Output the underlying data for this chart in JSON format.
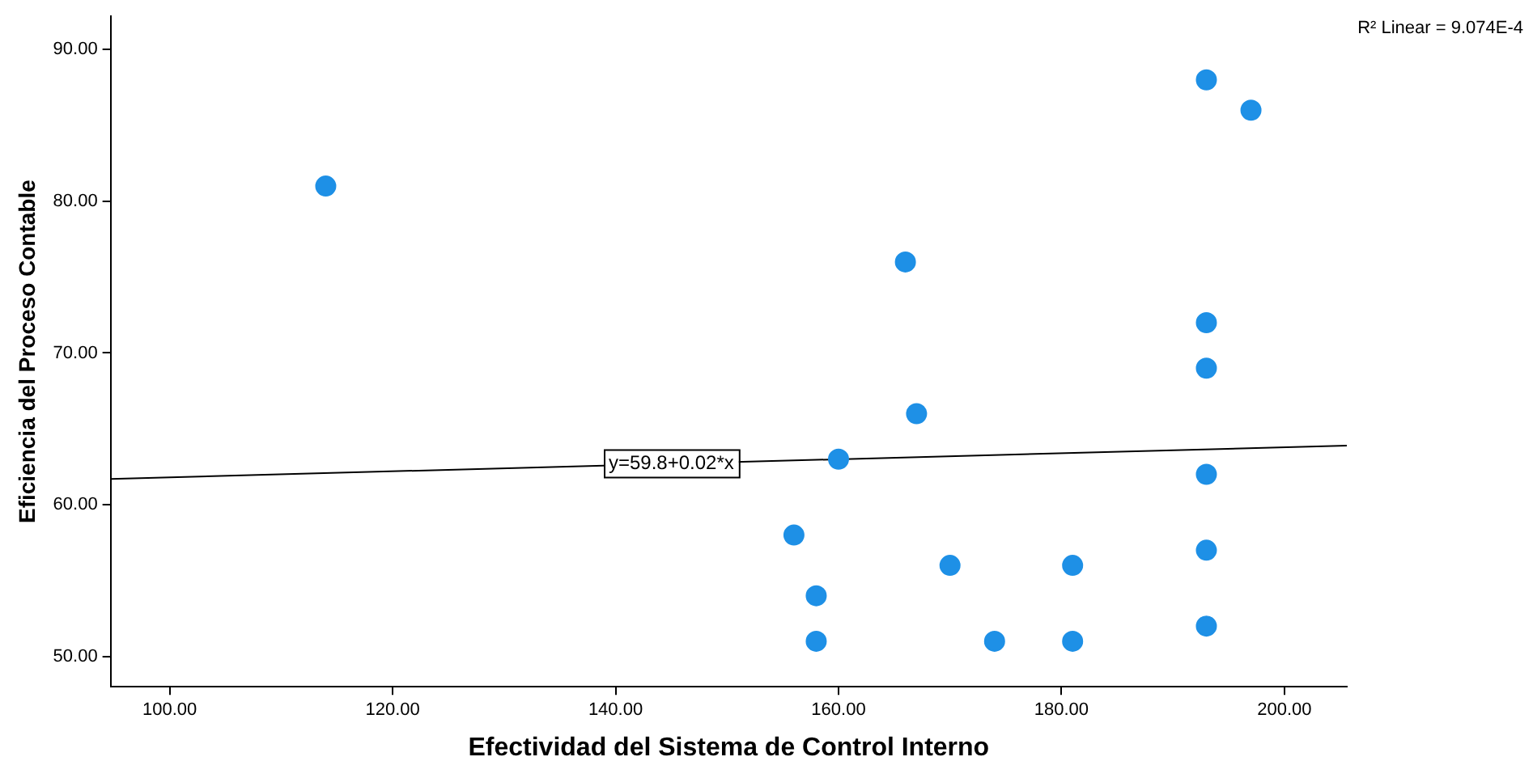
{
  "chart_data": {
    "type": "scatter",
    "xlabel": "Efectividad del Sistema de Control Interno",
    "ylabel": "Eficiencia del Proceso Contable",
    "marker": "circle",
    "xlim": [
      94.7,
      205.6
    ],
    "ylim": [
      48,
      92.2
    ],
    "xticks": [
      {
        "value": 100,
        "label": "100.00"
      },
      {
        "value": 120,
        "label": "120.00"
      },
      {
        "value": 140,
        "label": "140.00"
      },
      {
        "value": 160,
        "label": "160.00"
      },
      {
        "value": 180,
        "label": "180.00"
      },
      {
        "value": 200,
        "label": "200.00"
      }
    ],
    "yticks": [
      {
        "value": 50,
        "label": "50.00"
      },
      {
        "value": 60,
        "label": "60.00"
      },
      {
        "value": 70,
        "label": "70.00"
      },
      {
        "value": 80,
        "label": "80.00"
      },
      {
        "value": 90,
        "label": "90.00"
      }
    ],
    "series": [
      {
        "color": "#1e90e6",
        "x": [
          114,
          193,
          197,
          166,
          193,
          193,
          167,
          160,
          193,
          156,
          193,
          170,
          181,
          158,
          193,
          158,
          174,
          181
        ],
        "values": [
          81,
          88,
          86,
          76,
          72,
          69,
          66,
          63,
          62,
          58,
          57,
          56,
          56,
          54,
          52,
          51,
          51,
          51
        ]
      },
      {
        "type": "line",
        "marker": "none",
        "color": "#000000",
        "x": [
          94.7,
          205.6
        ],
        "values": [
          61.7,
          63.9
        ]
      }
    ],
    "annotations": [
      "R² Linear = 9.074E-4",
      {
        "text": "y=59.8+0.02*x",
        "x": 145,
        "y": 62.7
      }
    ]
  }
}
